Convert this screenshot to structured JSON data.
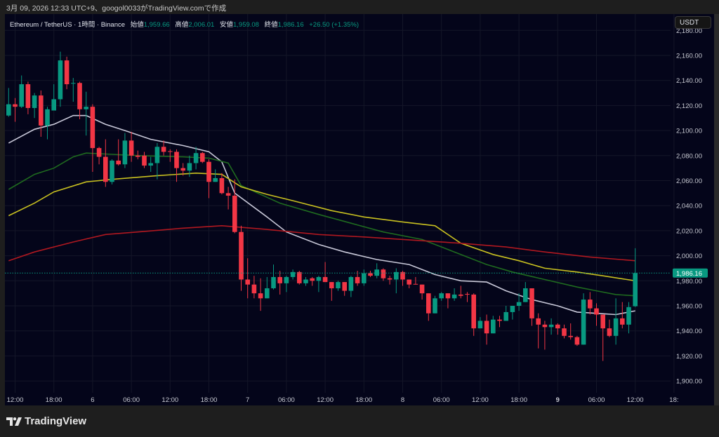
{
  "caption": "3月 09, 2026 12:33 UTC+9、googol0033がTradingView.comで作成",
  "legend": {
    "symbol": "Ethereum / TetherUS · 1時間 · Binance",
    "open_label": "始値",
    "open": "1,959.66",
    "high_label": "高値",
    "high": "2,006.01",
    "low_label": "安値",
    "low": "1,959.08",
    "close_label": "終値",
    "close": "1,986.16",
    "change": "+26.50 (+1.35%)"
  },
  "currency_button": "USDT",
  "logo_text": "TradingView",
  "colors": {
    "up": "#089981",
    "down": "#f23645",
    "background": "#04051a",
    "ma_white": "#c8c8d8",
    "ma_green": "#1f6b1f",
    "ma_yellow": "#c8c020",
    "ma_red": "#b01820"
  },
  "chart_data": {
    "type": "candlestick",
    "interval": "1h",
    "ylim": [
      1890,
      2185
    ],
    "y_ticks": [
      "2,180.00",
      "2,160.00",
      "2,140.00",
      "2,120.00",
      "2,100.00",
      "2,080.00",
      "2,060.00",
      "2,040.00",
      "2,020.00",
      "2,000.00",
      "1,980.00",
      "1,960.00",
      "1,940.00",
      "1,920.00",
      "1,900.00"
    ],
    "y_tick_values": [
      2180,
      2160,
      2140,
      2120,
      2100,
      2080,
      2060,
      2040,
      2020,
      2000,
      1980,
      1960,
      1940,
      1920,
      1900
    ],
    "x_ticks": [
      {
        "t": "03-05 12:00",
        "label": "12:00"
      },
      {
        "t": "03-05 18:00",
        "label": "18:00"
      },
      {
        "t": "03-06 00:00",
        "label": "6"
      },
      {
        "t": "03-06 06:00",
        "label": "06:00"
      },
      {
        "t": "03-06 12:00",
        "label": "12:00"
      },
      {
        "t": "03-06 18:00",
        "label": "18:00"
      },
      {
        "t": "03-07 00:00",
        "label": "7"
      },
      {
        "t": "03-07 06:00",
        "label": "06:00"
      },
      {
        "t": "03-07 12:00",
        "label": "12:00"
      },
      {
        "t": "03-07 18:00",
        "label": "18:00"
      },
      {
        "t": "03-08 00:00",
        "label": "8"
      },
      {
        "t": "03-08 06:00",
        "label": "06:00"
      },
      {
        "t": "03-08 12:00",
        "label": "12:00"
      },
      {
        "t": "03-08 18:00",
        "label": "18:00"
      },
      {
        "t": "03-09 00:00",
        "label": "9",
        "bold": true
      },
      {
        "t": "03-09 06:00",
        "label": "06:00"
      },
      {
        "t": "03-09 12:00",
        "label": "12:00"
      },
      {
        "t": "03-09 18:00",
        "label": "18:"
      }
    ],
    "current_price": 1986.16,
    "current_price_label": "1,986.16",
    "candles_format": [
      "time",
      "open",
      "high",
      "low",
      "close"
    ],
    "candles": [
      [
        "03-05 11:00",
        2112,
        2134,
        2111,
        2121
      ],
      [
        "03-05 12:00",
        2121,
        2126,
        2107,
        2119
      ],
      [
        "03-05 13:00",
        2119,
        2144,
        2118,
        2137
      ],
      [
        "03-05 14:00",
        2137,
        2139,
        2113,
        2118
      ],
      [
        "03-05 15:00",
        2118,
        2130,
        2110,
        2128
      ],
      [
        "03-05 16:00",
        2128,
        2132,
        2095,
        2104
      ],
      [
        "03-05 17:00",
        2104,
        2119,
        2093,
        2117
      ],
      [
        "03-05 18:00",
        2116,
        2137,
        2116,
        2125
      ],
      [
        "03-05 19:00",
        2125,
        2163,
        2119,
        2156
      ],
      [
        "03-05 20:00",
        2156,
        2159,
        2133,
        2137
      ],
      [
        "03-05 21:00",
        2137.5,
        2142,
        2123,
        2138
      ],
      [
        "03-05 22:00",
        2138,
        2139,
        2109,
        2117
      ],
      [
        "03-05 23:00",
        2117,
        2131,
        2096,
        2119
      ],
      [
        "03-06 00:00",
        2119,
        2121,
        2067,
        2086
      ],
      [
        "03-06 01:00",
        2086,
        2087,
        2073,
        2079
      ],
      [
        "03-06 02:00",
        2079,
        2093,
        2055,
        2059
      ],
      [
        "03-06 03:00",
        2059,
        2077,
        2057,
        2076
      ],
      [
        "03-06 04:00",
        2076,
        2093,
        2072,
        2073
      ],
      [
        "03-06 05:00",
        2073,
        2098,
        2070,
        2092
      ],
      [
        "03-06 06:00",
        2092,
        2099,
        2075,
        2080
      ],
      [
        "03-06 07:00",
        2080,
        2084,
        2077,
        2079
      ],
      [
        "03-06 08:00",
        2080,
        2083,
        2070,
        2072
      ],
      [
        "03-06 09:00",
        2072,
        2079,
        2067,
        2074
      ],
      [
        "03-06 10:00",
        2074,
        2090,
        2061,
        2087
      ],
      [
        "03-06 11:00",
        2087,
        2092,
        2080,
        2083
      ],
      [
        "03-06 12:00",
        2083.5,
        2085,
        2075,
        2083
      ],
      [
        "03-06 13:00",
        2083,
        2085,
        2059,
        2070
      ],
      [
        "03-06 14:00",
        2070,
        2074,
        2064,
        2068
      ],
      [
        "03-06 15:00",
        2068,
        2080,
        2063,
        2074
      ],
      [
        "03-06 16:00",
        2074,
        2087,
        2069,
        2082
      ],
      [
        "03-06 17:00",
        2082,
        2083,
        2074,
        2075
      ],
      [
        "03-06 18:00",
        2075,
        2077,
        2046,
        2059
      ],
      [
        "03-06 19:00",
        2059,
        2069,
        2059,
        2062
      ],
      [
        "03-06 20:00",
        2062,
        2066,
        2049,
        2050
      ],
      [
        "03-06 21:00",
        2050,
        2055,
        2037,
        2048
      ],
      [
        "03-06 22:00",
        2048,
        2061,
        2018,
        2019
      ],
      [
        "03-06 23:00",
        2019,
        2024,
        1972,
        1981
      ],
      [
        "03-07 00:00",
        1981,
        1998,
        1966,
        1977
      ],
      [
        "03-07 01:00",
        1977,
        1984,
        1966,
        1970
      ],
      [
        "03-07 02:00",
        1970,
        1982,
        1956,
        1966
      ],
      [
        "03-07 03:00",
        1966,
        1983,
        1966,
        1974
      ],
      [
        "03-07 04:00",
        1974,
        1993,
        1973,
        1983
      ],
      [
        "03-07 05:00",
        1983,
        1988,
        1969,
        1978
      ],
      [
        "03-07 06:00",
        1978,
        1984,
        1971,
        1983
      ],
      [
        "03-07 07:00",
        1983,
        1989,
        1981,
        1987
      ],
      [
        "03-07 08:00",
        1987,
        1988,
        1977,
        1978
      ],
      [
        "03-07 09:00",
        1978,
        1983,
        1976,
        1981
      ],
      [
        "03-07 10:00",
        1982,
        1983,
        1976,
        1980
      ],
      [
        "03-07 11:00",
        1980,
        1984,
        1971,
        1983
      ],
      [
        "03-07 12:00",
        1983,
        1995,
        1979,
        1979
      ],
      [
        "03-07 13:00",
        1979,
        1979,
        1964,
        1974
      ],
      [
        "03-07 14:00",
        1974,
        1980,
        1972,
        1979
      ],
      [
        "03-07 15:00",
        1979,
        1979,
        1968,
        1972
      ],
      [
        "03-07 16:00",
        1972,
        1984,
        1967,
        1983
      ],
      [
        "03-07 17:00",
        1983,
        1988,
        1976,
        1978
      ],
      [
        "03-07 18:00",
        1978,
        1989,
        1976,
        1986
      ],
      [
        "03-07 19:00",
        1986,
        1988,
        1983,
        1984
      ],
      [
        "03-07 20:00",
        1984,
        1994,
        1982,
        1989
      ],
      [
        "03-07 21:00",
        1989,
        1990,
        1980,
        1982
      ],
      [
        "03-07 22:00",
        1982,
        1984,
        1977,
        1981
      ],
      [
        "03-07 23:00",
        1981,
        1990,
        1970,
        1987
      ],
      [
        "03-08 00:00",
        1987,
        1988,
        1976,
        1981
      ],
      [
        "03-08 01:00",
        1981,
        1981,
        1974,
        1977
      ],
      [
        "03-08 02:00",
        1977.5,
        1983,
        1977,
        1977
      ],
      [
        "03-08 03:00",
        1977,
        1977,
        1965,
        1970
      ],
      [
        "03-08 04:00",
        1970,
        1970,
        1948,
        1954
      ],
      [
        "03-08 05:00",
        1954,
        1968,
        1954,
        1966
      ],
      [
        "03-08 06:00",
        1966,
        1971,
        1964,
        1970
      ],
      [
        "03-08 07:00",
        1970,
        1970,
        1958,
        1966
      ],
      [
        "03-08 08:00",
        1966,
        1974,
        1964,
        1969
      ],
      [
        "03-08 09:00",
        1969,
        1976,
        1966,
        1968
      ],
      [
        "03-08 10:00",
        1969.5,
        1971,
        1963,
        1969
      ],
      [
        "03-08 11:00",
        1969,
        1970,
        1936,
        1942
      ],
      [
        "03-08 12:00",
        1942,
        1951,
        1942,
        1948
      ],
      [
        "03-08 13:00",
        1948,
        1953,
        1929,
        1938
      ],
      [
        "03-08 14:00",
        1938,
        1952,
        1938,
        1949
      ],
      [
        "03-08 15:00",
        1949,
        1952,
        1943,
        1948
      ],
      [
        "03-08 16:00",
        1948,
        1960,
        1948,
        1955
      ],
      [
        "03-08 17:00",
        1955,
        1960,
        1949,
        1960
      ],
      [
        "03-08 18:00",
        1960,
        1970,
        1956,
        1963
      ],
      [
        "03-08 19:00",
        1963,
        1979,
        1963,
        1974
      ],
      [
        "03-08 20:00",
        1974,
        1974,
        1944,
        1950
      ],
      [
        "03-08 21:00",
        1950,
        1954,
        1926,
        1945
      ],
      [
        "03-08 22:00",
        1945,
        1948,
        1925,
        1943
      ],
      [
        "03-08 23:00",
        1943,
        1950,
        1937,
        1945
      ],
      [
        "03-09 00:00",
        1945,
        1946,
        1937,
        1942
      ],
      [
        "03-09 01:00",
        1942,
        1945,
        1934,
        1936
      ],
      [
        "03-09 02:00",
        1936,
        1946,
        1933,
        1935
      ],
      [
        "03-09 03:00",
        1935,
        1936,
        1928,
        1929
      ],
      [
        "03-09 04:00",
        1929,
        1970,
        1929,
        1965
      ],
      [
        "03-09 05:00",
        1965,
        1971,
        1953,
        1958
      ],
      [
        "03-09 06:00",
        1958,
        1962,
        1944,
        1953
      ],
      [
        "03-09 07:00",
        1953,
        1953,
        1916,
        1942
      ],
      [
        "03-09 08:00",
        1942,
        1949,
        1935,
        1936
      ],
      [
        "03-09 09:00",
        1936,
        1966,
        1929,
        1950
      ],
      [
        "03-09 10:00",
        1950,
        1963,
        1942,
        1945
      ],
      [
        "03-09 11:00",
        1945,
        1963,
        1938,
        1959
      ],
      [
        "03-09 12:00",
        1959.66,
        2006.01,
        1959.08,
        1986.16
      ]
    ],
    "moving_averages": [
      {
        "color": "#c8c8d8",
        "points": [
          [
            "03-05 11:00",
            2090
          ],
          [
            "03-05 15:00",
            2101
          ],
          [
            "03-05 18:00",
            2105
          ],
          [
            "03-05 21:00",
            2112
          ],
          [
            "03-05 23:00",
            2112
          ],
          [
            "03-06 02:00",
            2105
          ],
          [
            "03-06 05:00",
            2100
          ],
          [
            "03-06 09:00",
            2093
          ],
          [
            "03-06 14:00",
            2088
          ],
          [
            "03-06 18:00",
            2083
          ],
          [
            "03-06 20:00",
            2075
          ],
          [
            "03-06 22:00",
            2050
          ],
          [
            "03-07 03:00",
            2031
          ],
          [
            "03-07 06:00",
            2019
          ],
          [
            "03-07 11:00",
            2009
          ],
          [
            "03-07 15:00",
            2003
          ],
          [
            "03-07 20:00",
            1997
          ],
          [
            "03-08 01:00",
            1993
          ],
          [
            "03-08 05:00",
            1985
          ],
          [
            "03-08 09:00",
            1980
          ],
          [
            "03-08 13:00",
            1979
          ],
          [
            "03-08 16:00",
            1972
          ],
          [
            "03-08 20:00",
            1965
          ],
          [
            "03-09 00:00",
            1960
          ],
          [
            "03-09 03:00",
            1955
          ],
          [
            "03-09 06:00",
            1954
          ],
          [
            "03-09 09:00",
            1953
          ],
          [
            "03-09 12:00",
            1956
          ]
        ]
      },
      {
        "color": "#1f6b1f",
        "points": [
          [
            "03-05 11:00",
            2053
          ],
          [
            "03-05 15:00",
            2065
          ],
          [
            "03-05 18:00",
            2070
          ],
          [
            "03-05 21:00",
            2079
          ],
          [
            "03-05 23:00",
            2082
          ],
          [
            "03-06 03:00",
            2081
          ],
          [
            "03-06 07:00",
            2080
          ],
          [
            "03-06 14:00",
            2079
          ],
          [
            "03-06 18:00",
            2078
          ],
          [
            "03-06 21:00",
            2074
          ],
          [
            "03-06 23:00",
            2056
          ],
          [
            "03-07 05:00",
            2042
          ],
          [
            "03-07 11:00",
            2033
          ],
          [
            "03-07 16:00",
            2026
          ],
          [
            "03-07 21:00",
            2019
          ],
          [
            "03-08 03:00",
            2013
          ],
          [
            "03-08 08:00",
            2003
          ],
          [
            "03-08 13:00",
            1993
          ],
          [
            "03-08 17:00",
            1987
          ],
          [
            "03-08 22:00",
            1981
          ],
          [
            "03-09 03:00",
            1975
          ],
          [
            "03-09 06:00",
            1972
          ],
          [
            "03-09 09:00",
            1969
          ],
          [
            "03-09 12:00",
            1968
          ]
        ]
      },
      {
        "color": "#c8c020",
        "points": [
          [
            "03-05 11:00",
            2032
          ],
          [
            "03-05 15:00",
            2042
          ],
          [
            "03-05 18:00",
            2051
          ],
          [
            "03-05 23:00",
            2059
          ],
          [
            "03-06 03:00",
            2061
          ],
          [
            "03-06 10:00",
            2064
          ],
          [
            "03-06 16:00",
            2066
          ],
          [
            "03-06 20:00",
            2065
          ],
          [
            "03-06 23:00",
            2055
          ],
          [
            "03-07 03:00",
            2049
          ],
          [
            "03-07 07:00",
            2044
          ],
          [
            "03-07 13:00",
            2036
          ],
          [
            "03-07 18:00",
            2031
          ],
          [
            "03-08 00:00",
            2027
          ],
          [
            "03-08 05:00",
            2024
          ],
          [
            "03-08 09:00",
            2010
          ],
          [
            "03-08 14:00",
            2001
          ],
          [
            "03-08 18:00",
            1996
          ],
          [
            "03-08 22:00",
            1990
          ],
          [
            "03-09 03:00",
            1987
          ],
          [
            "03-09 07:00",
            1984
          ],
          [
            "03-09 12:00",
            1980
          ]
        ]
      },
      {
        "color": "#b01820",
        "points": [
          [
            "03-05 11:00",
            1996
          ],
          [
            "03-05 15:00",
            2003
          ],
          [
            "03-05 21:00",
            2011
          ],
          [
            "03-06 02:00",
            2017
          ],
          [
            "03-06 07:00",
            2019
          ],
          [
            "03-06 14:00",
            2022
          ],
          [
            "03-06 20:00",
            2024
          ],
          [
            "03-07 03:00",
            2021
          ],
          [
            "03-07 11:00",
            2017
          ],
          [
            "03-07 18:00",
            2015
          ],
          [
            "03-08 03:00",
            2012
          ],
          [
            "03-08 09:00",
            2010
          ],
          [
            "03-08 16:00",
            2007
          ],
          [
            "03-08 22:00",
            2003
          ],
          [
            "03-09 05:00",
            1999
          ],
          [
            "03-09 12:00",
            1996
          ]
        ]
      }
    ]
  }
}
